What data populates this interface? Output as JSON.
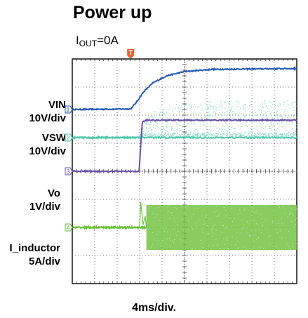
{
  "chart_data": {
    "type": "line",
    "title": "Power up",
    "subtitle": {
      "main": "I",
      "sub": "OUT",
      "rest": "=0A"
    },
    "xlabel": "4ms/div.",
    "x_divisions": 10,
    "y_divisions": 8,
    "trigger_label": "T",
    "trigger_x_div": 2.6,
    "series": [
      {
        "key": "vin",
        "label_top": "VIN",
        "label_scale": "10V/div",
        "channel": "1",
        "color": "#2a5cb4",
        "type": "line",
        "ground_div": 2.2,
        "points": [
          [
            0,
            2.2
          ],
          [
            2.6,
            2.22
          ],
          [
            2.85,
            2.45
          ],
          [
            3.2,
            2.85
          ],
          [
            3.6,
            3.15
          ],
          [
            4.2,
            3.4
          ],
          [
            5.0,
            3.55
          ],
          [
            6.2,
            3.63
          ],
          [
            10,
            3.66
          ]
        ]
      },
      {
        "key": "vsw",
        "label_top": "VSW",
        "label_scale": "10V/div",
        "channel": "2",
        "color": "#4fc7ad",
        "type": "switching",
        "ground_div": 1.2,
        "switch_start_div": 3.0,
        "envelope": [
          [
            3.0,
            1.3
          ],
          [
            3.3,
            1.9
          ],
          [
            3.8,
            2.25
          ],
          [
            4.6,
            2.4
          ],
          [
            6.0,
            2.5
          ],
          [
            10,
            2.55
          ]
        ]
      },
      {
        "key": "vo",
        "label_top": "Vo",
        "label_scale": "1V/div",
        "channel": "3",
        "color": "#6a53a8",
        "type": "line",
        "ground_div": 0,
        "points": [
          [
            0,
            0
          ],
          [
            2.98,
            0
          ],
          [
            3.05,
            0.95
          ],
          [
            3.12,
            1.75
          ],
          [
            3.3,
            1.82
          ],
          [
            10,
            1.82
          ]
        ]
      },
      {
        "key": "il",
        "label_top": "I_inductor",
        "label_scale": "5A/div",
        "channel": "4",
        "color": "#6cc13a",
        "type": "switching",
        "ground_div": -2.0,
        "switch_start_div": 3.3,
        "band": [
          -0.8,
          0.8
        ]
      }
    ]
  }
}
